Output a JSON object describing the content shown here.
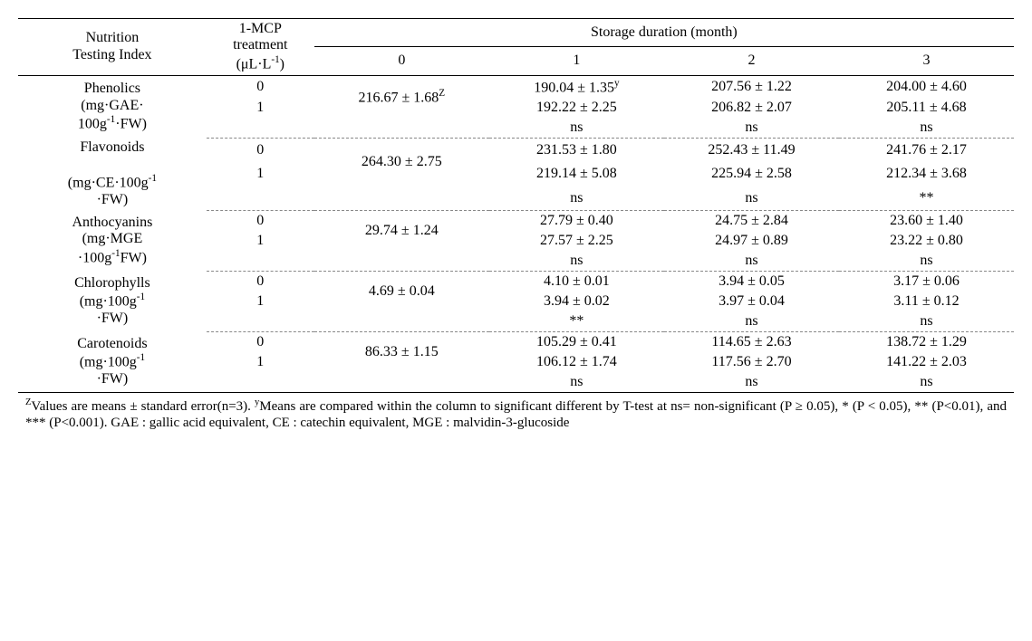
{
  "header": {
    "col1": "Nutrition\nTesting Index",
    "col2_html": "1-MCP<br>treatment<br>(μL·L<sup>-1</sup>)",
    "storage": "Storage duration (month)",
    "m0": "0",
    "m1": "1",
    "m2": "2",
    "m3": "3"
  },
  "rows": [
    {
      "label_html": "Phenolics<br>(mg·GAE·<br>100g<sup>-1</sup>·FW)",
      "t0": "0",
      "t1": "1",
      "base_html": "216.67 ± 1.68<sup>Z</sup>",
      "m1_0_html": "190.04 ± 1.35<sup>y</sup>",
      "m1_1": "192.22 ± 2.25",
      "m1_s": "ns",
      "m2_0": "207.56 ± 1.22",
      "m2_1": "206.82 ± 2.07",
      "m2_s": "ns",
      "m3_0": "204.00 ± 4.60",
      "m3_1": "205.11 ± 4.68",
      "m3_s": "ns"
    },
    {
      "label_html": "Flavonoids<br><br>(mg·CE·100g<sup>-1</sup><br>·FW)",
      "t0": "0",
      "t1": "1",
      "base_html": "264.30 ± 2.75",
      "m1_0_html": "231.53 ± 1.80",
      "m1_1": "219.14 ± 5.08",
      "m1_s": "ns",
      "m2_0": "252.43 ± 11.49",
      "m2_1": "225.94 ± 2.58",
      "m2_s": "ns",
      "m3_0": "241.76 ± 2.17",
      "m3_1": "212.34 ± 3.68",
      "m3_s": "**"
    },
    {
      "label_html": "Anthocyanins<br>(mg·MGE<br>·100g<sup>-1</sup>FW)",
      "t0": "0",
      "t1": "1",
      "base_html": "29.74 ± 1.24",
      "m1_0_html": "27.79 ± 0.40",
      "m1_1": "27.57 ± 2.25",
      "m1_s": "ns",
      "m2_0": "24.75 ± 2.84",
      "m2_1": "24.97 ± 0.89",
      "m2_s": "ns",
      "m3_0": "23.60 ± 1.40",
      "m3_1": "23.22 ± 0.80",
      "m3_s": "ns"
    },
    {
      "label_html": "Chlorophylls<br>(mg·100g<sup>-1</sup><br>·FW)",
      "t0": "0",
      "t1": "1",
      "base_html": "4.69 ± 0.04",
      "m1_0_html": "4.10 ± 0.01",
      "m1_1": "3.94 ± 0.02",
      "m1_s": "**",
      "m2_0": "3.94 ± 0.05",
      "m2_1": "3.97 ± 0.04",
      "m2_s": "ns",
      "m3_0": "3.17 ± 0.06",
      "m3_1": "3.11 ± 0.12",
      "m3_s": "ns"
    },
    {
      "label_html": "Carotenoids<br>(mg·100g<sup>-1</sup><br>·FW)",
      "t0": "0",
      "t1": "1",
      "base_html": "86.33 ± 1.15",
      "m1_0_html": "105.29 ± 0.41",
      "m1_1": "106.12 ± 1.74",
      "m1_s": "ns",
      "m2_0": "114.65 ± 2.63",
      "m2_1": "117.56 ± 2.70",
      "m2_s": "ns",
      "m3_0": "138.72 ± 1.29",
      "m3_1": "141.22 ± 2.03",
      "m3_s": "ns"
    }
  ],
  "footnote_html": "<sup>Z</sup>Values are means ± standard error(n=3). <sup>y</sup>Means are compared within the column to significant different by T-test at ns= non-significant (P ≥ 0.05), * (P < 0.05), ** (P<0.01), and *** (P<0.001). GAE : gallic acid equivalent, CE : catechin equivalent, MGE : malvidin-3-glucoside"
}
